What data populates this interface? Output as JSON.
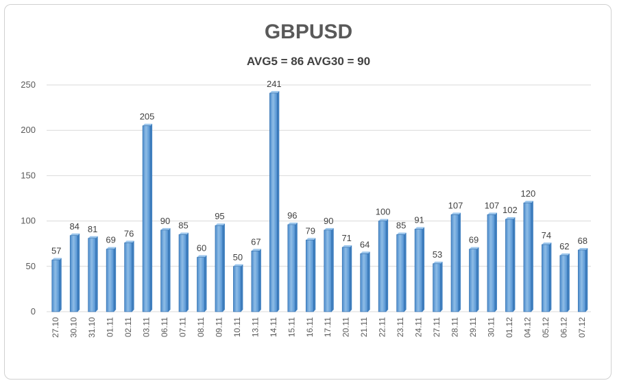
{
  "chart_data": {
    "type": "bar",
    "title": "GBPUSD",
    "subtitle": "AVG5 = 86 AVG30 = 90",
    "xlabel": "",
    "ylabel": "",
    "ylim": [
      0,
      250
    ],
    "yticks": [
      0,
      50,
      100,
      150,
      200,
      250
    ],
    "grid": true,
    "legend": "none",
    "categories": [
      "27.10",
      "30.10",
      "31.10",
      "01.11",
      "02.11",
      "03.11",
      "06.11",
      "07.11",
      "08.11",
      "09.11",
      "10.11",
      "13.11",
      "14.11",
      "15.11",
      "16.11",
      "17.11",
      "20.11",
      "21.11",
      "22.11",
      "23.11",
      "24.11",
      "27.11",
      "28.11",
      "29.11",
      "30.11",
      "01.12",
      "04.12",
      "05.12",
      "06.12",
      "07.12"
    ],
    "values": [
      57,
      84,
      81,
      69,
      76,
      205,
      90,
      85,
      60,
      95,
      50,
      67,
      241,
      96,
      79,
      90,
      71,
      64,
      100,
      85,
      91,
      53,
      107,
      69,
      107,
      102,
      120,
      74,
      62,
      68
    ],
    "colors": {
      "bar": "#5b9bd5",
      "bar_dark": "#2e6aa8",
      "bar_side": "#3f7fbf"
    }
  }
}
